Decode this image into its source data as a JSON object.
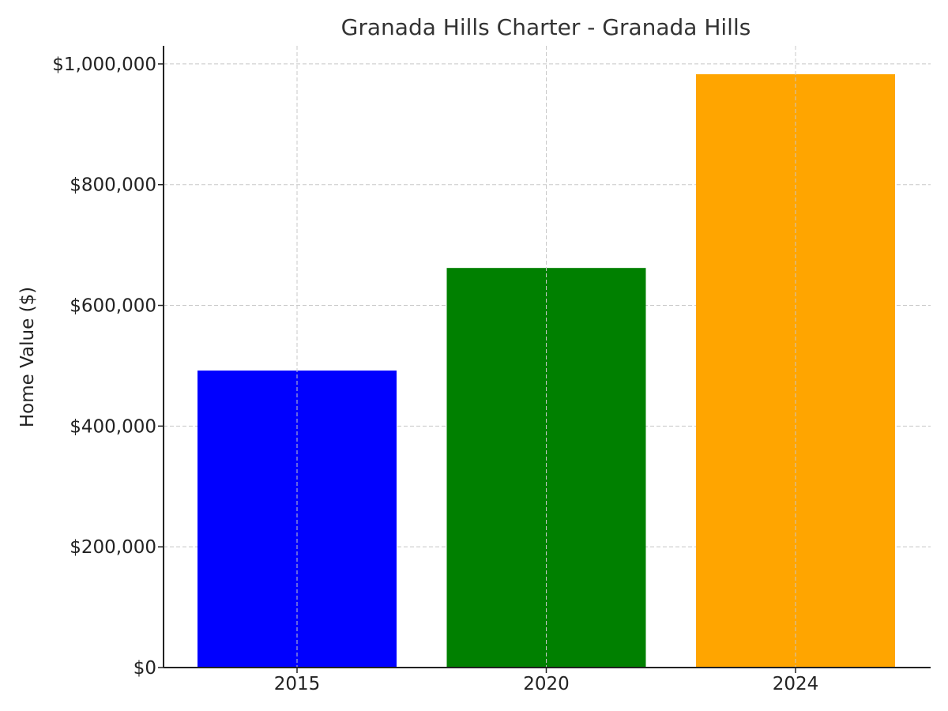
{
  "chart_data": {
    "type": "bar",
    "title": "Granada Hills Charter - Granada Hills",
    "xlabel": "",
    "ylabel": "Home Value ($)",
    "categories": [
      "2015",
      "2020",
      "2024"
    ],
    "values": [
      492000,
      662000,
      983000
    ],
    "colors": [
      "#0000ff",
      "#008000",
      "#ffa500"
    ],
    "ylim": [
      0,
      1030000
    ],
    "yticks": [
      0,
      200000,
      400000,
      600000,
      800000,
      1000000
    ],
    "ytick_labels": [
      "$0",
      "$200,000",
      "$400,000",
      "$600,000",
      "$800,000",
      "$1,000,000"
    ],
    "grid": true,
    "legend": "none"
  }
}
